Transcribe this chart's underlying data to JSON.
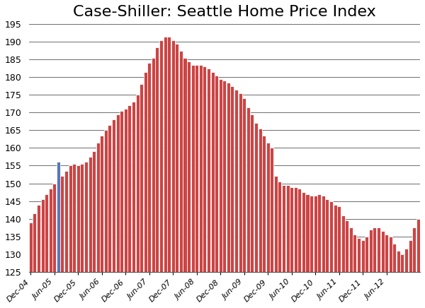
{
  "title": "Case-Shiller: Seattle Home Price Index",
  "title_fontsize": 16,
  "bar_color": "#CC4444",
  "bar_edge_color": "#FFFFFF",
  "blue_bar_color": "#5577BB",
  "background_color": "#FFFFFF",
  "ylim": [
    125,
    195
  ],
  "yticks": [
    125,
    130,
    135,
    140,
    145,
    150,
    155,
    160,
    165,
    170,
    175,
    180,
    185,
    190,
    195
  ],
  "grid_color": "#555555",
  "tick_labels": [
    "Dec-04",
    "Jun-05",
    "Dec-05",
    "Jun-06",
    "Dec-06",
    "Jun-07",
    "Dec-07",
    "Jun-08",
    "Dec-08",
    "Jun-09",
    "Dec-09",
    "Jun-10",
    "Dec-10",
    "Jun-11",
    "Dec-11",
    "Jun-12"
  ],
  "tick_positions": [
    0,
    6,
    12,
    18,
    24,
    30,
    36,
    42,
    48,
    54,
    60,
    66,
    72,
    78,
    84,
    90
  ],
  "blue_bar_index": 7,
  "values": [
    139.0,
    141.5,
    144.0,
    145.5,
    147.0,
    148.5,
    150.0,
    156.0,
    152.0,
    153.5,
    155.0,
    155.5,
    155.0,
    155.5,
    156.0,
    157.5,
    159.0,
    161.5,
    163.5,
    165.0,
    166.5,
    168.0,
    169.5,
    170.5,
    171.0,
    172.0,
    173.0,
    175.0,
    178.0,
    181.5,
    184.0,
    185.5,
    188.5,
    190.5,
    191.5,
    191.5,
    190.5,
    189.5,
    187.5,
    185.5,
    184.5,
    183.5,
    183.5,
    183.5,
    183.0,
    182.5,
    181.5,
    180.5,
    179.5,
    179.0,
    178.5,
    177.5,
    176.5,
    175.5,
    174.0,
    171.5,
    169.5,
    167.0,
    165.5,
    163.5,
    161.5,
    160.0,
    152.0,
    150.5,
    149.5,
    149.5,
    149.0,
    149.0,
    148.5,
    147.5,
    147.0,
    146.5,
    146.5,
    147.0,
    146.5,
    145.5,
    145.0,
    144.0,
    143.5,
    141.0,
    139.5,
    137.5,
    135.5,
    134.5,
    134.0,
    135.0,
    137.0,
    137.5,
    137.5,
    136.5,
    135.5,
    135.0,
    133.0,
    131.0,
    130.0,
    131.5,
    134.0,
    137.5,
    140.0
  ]
}
